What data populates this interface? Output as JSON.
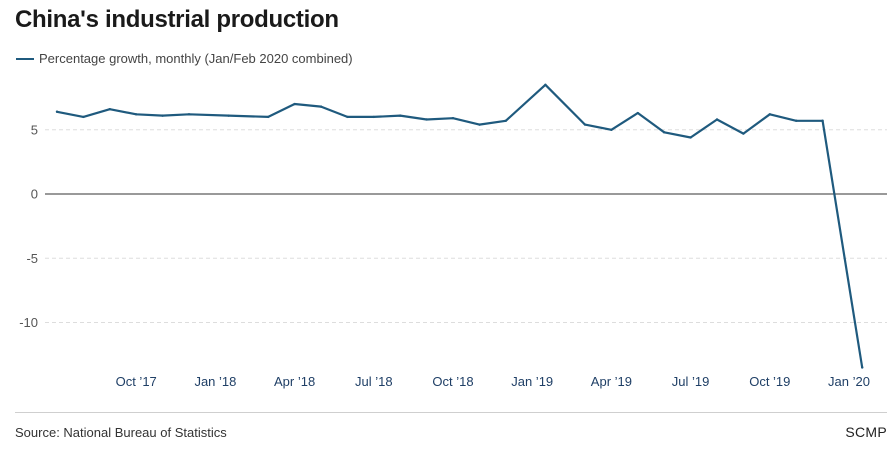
{
  "title": "China's industrial production",
  "legend_label": "Percentage growth, monthly (Jan/Feb 2020 combined)",
  "source": "Source: National Bureau of Statistics",
  "brand": "SCMP",
  "chart_data": {
    "type": "line",
    "title": "China's industrial production",
    "xlabel": "",
    "ylabel": "",
    "ylim": [
      -14,
      9
    ],
    "y_ticks": [
      5,
      0,
      -5,
      -10
    ],
    "x_tick_labels": [
      "Oct ’17",
      "Jan ’18",
      "Apr ’18",
      "Jul ’18",
      "Oct ’18",
      "Jan ’19",
      "Apr ’19",
      "Jul ’19",
      "Oct ’19",
      "Jan ’20"
    ],
    "x_tick_index": [
      3,
      6,
      9,
      12,
      15,
      18,
      21,
      24,
      27,
      30
    ],
    "series": [
      {
        "name": "Percentage growth, monthly (Jan/Feb 2020 combined)",
        "color": "#1f5a7e",
        "x": [
          "Jul 2017",
          "Aug 2017",
          "Sep 2017",
          "Oct 2017",
          "Nov 2017",
          "Dec 2017",
          "Jan/Feb 2018",
          "Mar 2018",
          "Apr 2018",
          "May 2018",
          "Jun 2018",
          "Jul 2018",
          "Aug 2018",
          "Sep 2018",
          "Oct 2018",
          "Nov 2018",
          "Dec 2018",
          "Jan/Feb 2019",
          "Mar 2019",
          "Apr 2019",
          "May 2019",
          "Jun 2019",
          "Jul 2019",
          "Aug 2019",
          "Sep 2019",
          "Oct 2019",
          "Nov 2019",
          "Dec 2019",
          "Jan/Feb 2020"
        ],
        "x_index": [
          0,
          1,
          2,
          3,
          4,
          5,
          6.5,
          8,
          9,
          10,
          11,
          12,
          13,
          14,
          15,
          16,
          17,
          18.5,
          20,
          21,
          22,
          23,
          24,
          25,
          26,
          27,
          28,
          29,
          30.5
        ],
        "values": [
          6.4,
          6.0,
          6.6,
          6.2,
          6.1,
          6.2,
          6.1,
          6.0,
          7.0,
          6.8,
          6.0,
          6.0,
          6.1,
          5.8,
          5.9,
          5.4,
          5.7,
          8.5,
          5.4,
          5.0,
          6.3,
          4.8,
          4.4,
          5.8,
          4.7,
          6.2,
          5.7,
          5.7,
          -13.5
        ]
      }
    ]
  }
}
